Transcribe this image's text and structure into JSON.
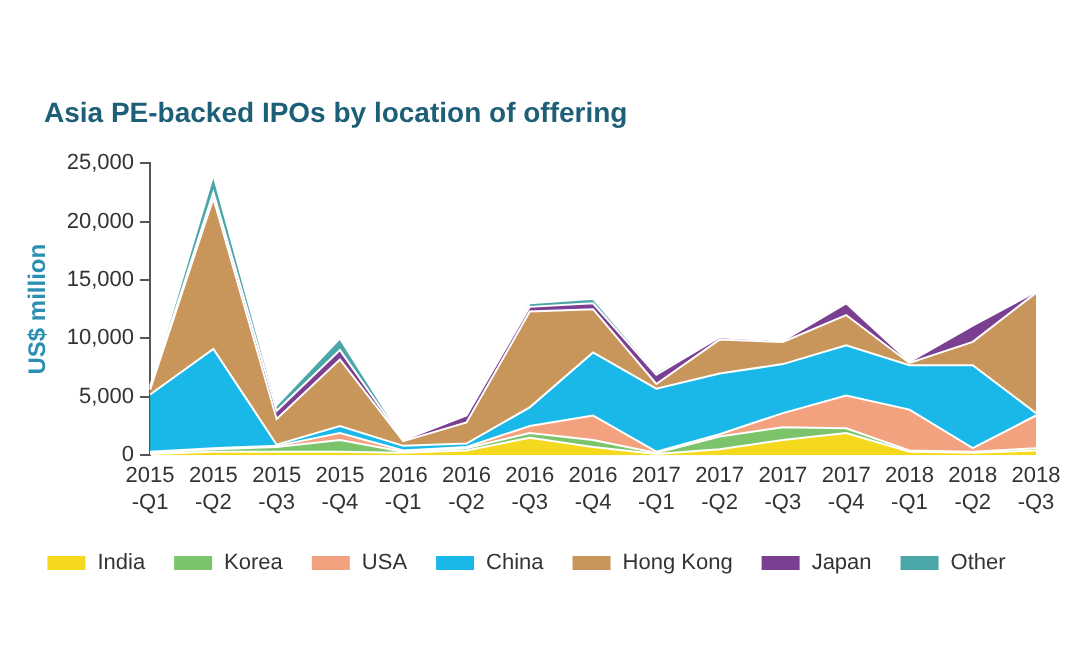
{
  "chart_data": {
    "type": "area",
    "stacked": true,
    "title": "Asia PE-backed IPOs by location of offering",
    "ylabel": "US$ million",
    "categories": [
      "2015-Q1",
      "2015-Q2",
      "2015-Q3",
      "2015-Q4",
      "2016-Q1",
      "2016-Q2",
      "2016-Q3",
      "2016-Q4",
      "2017-Q1",
      "2017-Q2",
      "2017-Q3",
      "2017-Q4",
      "2018-Q1",
      "2018-Q2",
      "2018-Q3"
    ],
    "series": [
      {
        "name": "India",
        "color": "#f5d91e",
        "values": [
          100,
          300,
          300,
          300,
          200,
          400,
          1500,
          700,
          100,
          500,
          1300,
          1900,
          300,
          200,
          400
        ]
      },
      {
        "name": "Korea",
        "color": "#7cc46b",
        "values": [
          100,
          200,
          400,
          1000,
          100,
          200,
          400,
          600,
          100,
          1100,
          1100,
          400,
          100,
          100,
          200
        ]
      },
      {
        "name": "USA",
        "color": "#f2a27e",
        "values": [
          100,
          100,
          100,
          600,
          100,
          100,
          600,
          2100,
          100,
          200,
          1200,
          2800,
          3500,
          300,
          2800
        ]
      },
      {
        "name": "China",
        "color": "#1ab8e8",
        "values": [
          4900,
          8500,
          100,
          600,
          400,
          300,
          1600,
          5400,
          5400,
          5200,
          4200,
          4300,
          3800,
          7100,
          200
        ]
      },
      {
        "name": "Hong Kong",
        "color": "#c8965a",
        "values": [
          400,
          12900,
          2200,
          5700,
          400,
          1800,
          8200,
          3700,
          400,
          2900,
          1900,
          2600,
          200,
          2000,
          10300
        ]
      },
      {
        "name": "Japan",
        "color": "#7b3f91",
        "values": [
          100,
          500,
          700,
          800,
          100,
          600,
          400,
          500,
          800,
          200,
          100,
          1000,
          100,
          1400,
          100
        ]
      },
      {
        "name": "Other",
        "color": "#4ba6a8",
        "values": [
          200,
          1500,
          500,
          1000,
          100,
          100,
          300,
          400,
          200,
          100,
          100,
          200,
          100,
          100,
          100
        ]
      }
    ],
    "ylim": [
      0,
      25000
    ],
    "yticks": [
      0,
      {
        "value": 5000,
        "label": "5,000"
      },
      {
        "value": 10000,
        "label": "10,000"
      },
      {
        "value": 15000,
        "label": "15,000"
      },
      {
        "value": 20000,
        "label": "20,000"
      },
      {
        "value": 25000,
        "label": "25,000"
      }
    ],
    "grid": false,
    "legend": "bottom"
  }
}
